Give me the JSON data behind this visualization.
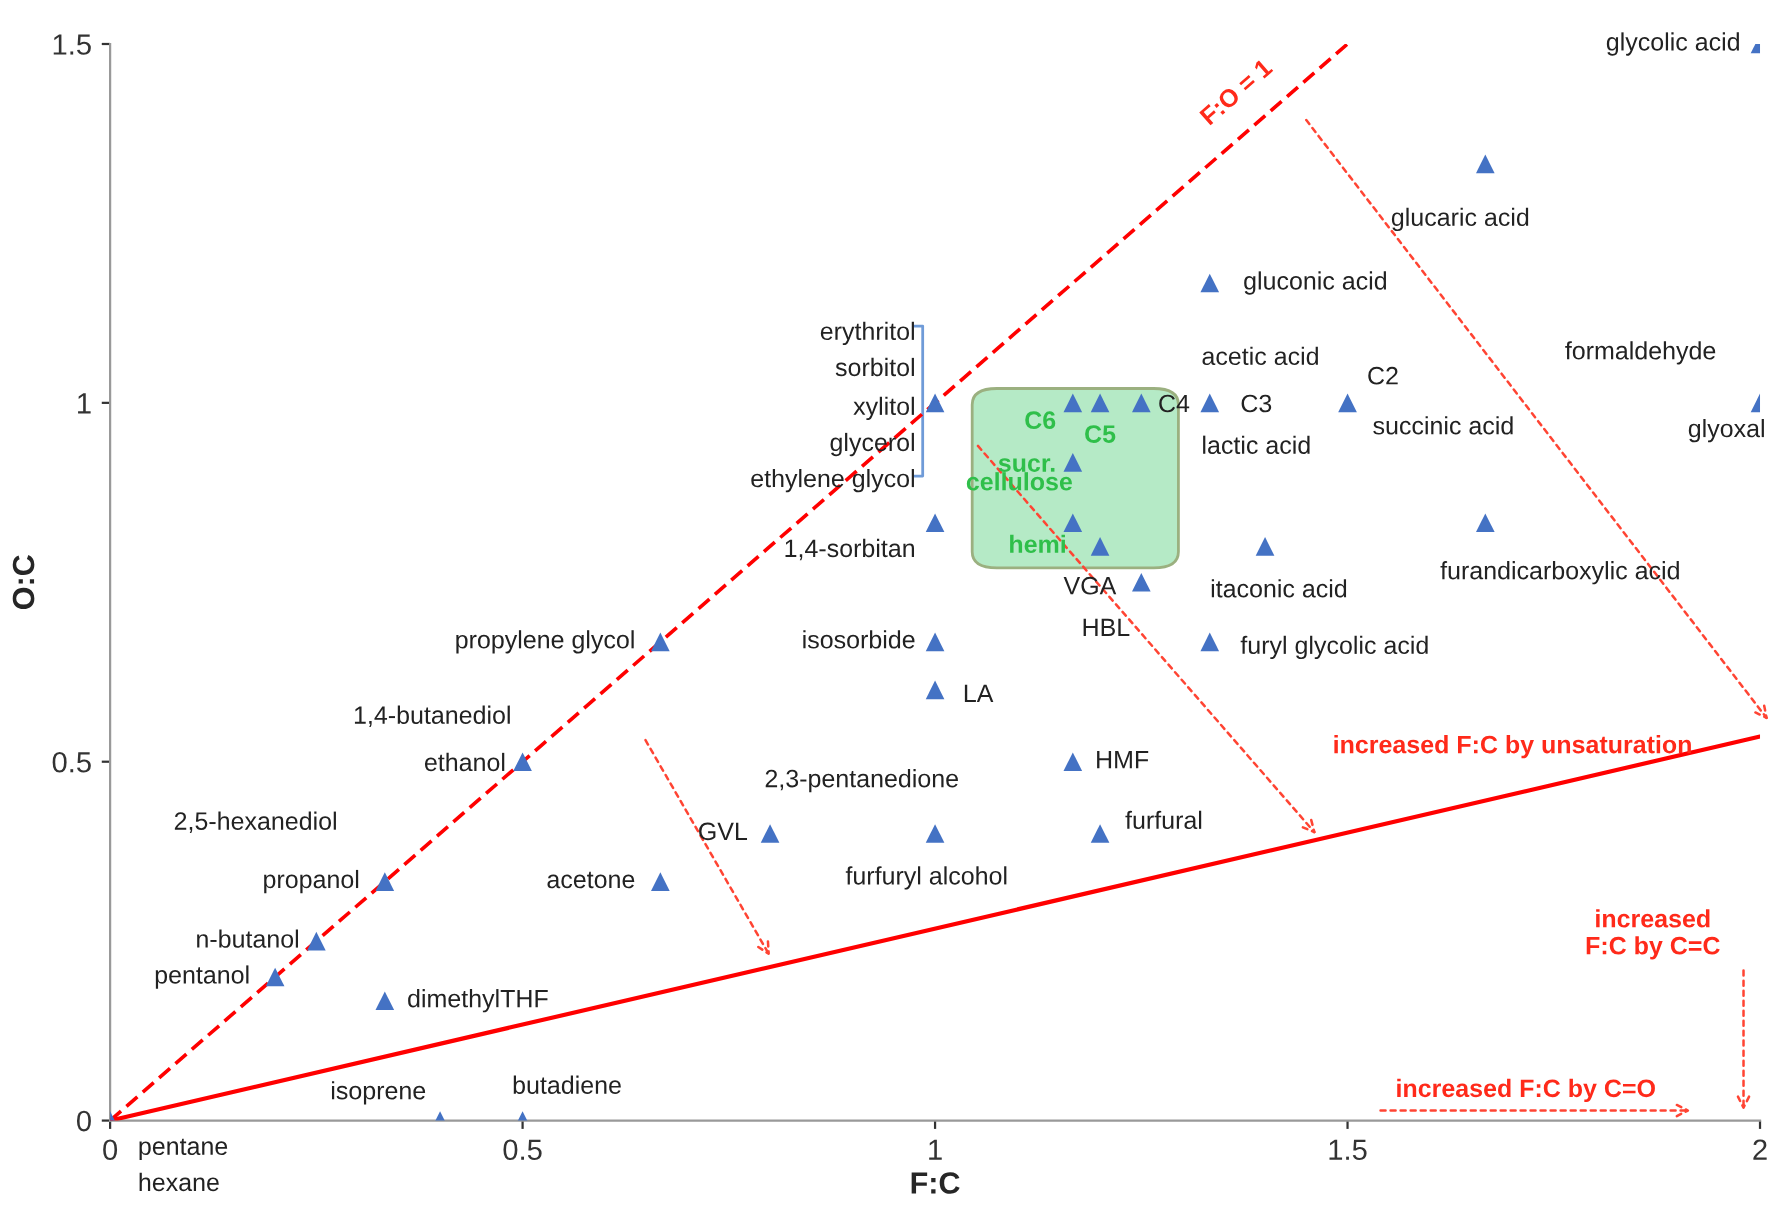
{
  "chart_data": {
    "type": "scatter",
    "xlabel": "F:C",
    "ylabel": "O:C",
    "xlim": [
      0,
      2
    ],
    "ylim": [
      0,
      1.5
    ],
    "xticks": [
      0,
      0.5,
      1,
      1.5,
      2
    ],
    "yticks": [
      0,
      0.5,
      1,
      1.5
    ],
    "grid": false,
    "series": [
      {
        "marker": "triangle",
        "color": "#4472c4",
        "x": [
          0,
          0.4,
          0.5,
          0.2,
          0.25,
          0.333,
          0.333,
          0.5,
          0.667,
          0.667,
          1,
          1,
          1,
          1,
          0.8,
          1,
          1.167,
          1.2,
          1.167,
          1.2,
          1.167,
          1.167,
          1.2,
          1.25,
          1.25,
          1.333,
          1.5,
          1.333,
          1.667,
          2,
          2,
          1.4,
          1.667,
          1.333
        ],
        "values": [
          0,
          0,
          0,
          0.2,
          0.25,
          0.167,
          0.333,
          0.5,
          0.333,
          0.667,
          1,
          0.833,
          0.667,
          0.6,
          0.4,
          0.4,
          0.5,
          0.4,
          1,
          1,
          0.917,
          0.833,
          0.8,
          1,
          0.75,
          1,
          1,
          1.167,
          1.333,
          1.5,
          1,
          0.8,
          0.833,
          0.667
        ]
      },
      {
        "type": "line",
        "marker": "none",
        "color": "#ff0000",
        "line_style": "dashed",
        "x": [
          0,
          1.5
        ],
        "values": [
          0,
          1.5
        ]
      },
      {
        "type": "line",
        "marker": "none",
        "color": "#ff0000",
        "line_style": "solid",
        "x": [
          0,
          2
        ],
        "values": [
          0,
          0.535
        ]
      }
    ],
    "annotations": [
      {
        "text": "pentane",
        "x": 0,
        "y": 0
      },
      {
        "text": "hexane",
        "x": 0,
        "y": 0
      },
      {
        "text": "isoprene",
        "x": 0.4,
        "y": 0
      },
      {
        "text": "butadiene",
        "x": 0.5,
        "y": 0
      },
      {
        "text": "pentanol",
        "x": 0.2,
        "y": 0.2
      },
      {
        "text": "n-butanol",
        "x": 0.25,
        "y": 0.25
      },
      {
        "text": "dimethylTHF",
        "x": 0.333,
        "y": 0.167
      },
      {
        "text": "propanol",
        "x": 0.333,
        "y": 0.333
      },
      {
        "text": "2,5-hexanediol",
        "x": 0.333,
        "y": 0.333
      },
      {
        "text": "ethanol",
        "x": 0.5,
        "y": 0.5
      },
      {
        "text": "1,4-butanediol",
        "x": 0.5,
        "y": 0.5
      },
      {
        "text": "acetone",
        "x": 0.667,
        "y": 0.333
      },
      {
        "text": "propylene glycol",
        "x": 0.667,
        "y": 0.667
      },
      {
        "text": "erythritol",
        "x": 1,
        "y": 1
      },
      {
        "text": "sorbitol",
        "x": 1,
        "y": 1
      },
      {
        "text": "xylitol",
        "x": 1,
        "y": 1
      },
      {
        "text": "glycerol",
        "x": 1,
        "y": 1
      },
      {
        "text": "ethylene glycol",
        "x": 1,
        "y": 1
      },
      {
        "text": "1,4-sorbitan",
        "x": 1,
        "y": 0.833
      },
      {
        "text": "isosorbide",
        "x": 1,
        "y": 0.667
      },
      {
        "text": "LA",
        "x": 1,
        "y": 0.6
      },
      {
        "text": "2,3-pentanedione",
        "x": 0.8,
        "y": 0.4
      },
      {
        "text": "GVL",
        "x": 0.8,
        "y": 0.4
      },
      {
        "text": "furfuryl alcohol",
        "x": 1,
        "y": 0.4
      },
      {
        "text": "HMF",
        "x": 1.167,
        "y": 0.5
      },
      {
        "text": "furfural",
        "x": 1.2,
        "y": 0.4
      },
      {
        "text": "C6",
        "x": 1.167,
        "y": 1
      },
      {
        "text": "C5",
        "x": 1.2,
        "y": 1
      },
      {
        "text": "sucr.",
        "x": 1.167,
        "y": 0.917
      },
      {
        "text": "cellulose",
        "x": 1.167,
        "y": 0.833
      },
      {
        "text": "hemi",
        "x": 1.2,
        "y": 0.8
      },
      {
        "text": "C4",
        "x": 1.25,
        "y": 1
      },
      {
        "text": "VGA",
        "x": 1.25,
        "y": 0.75
      },
      {
        "text": "HBL",
        "x": 1.25,
        "y": 0.75
      },
      {
        "text": "acetic acid",
        "x": 1.333,
        "y": 1
      },
      {
        "text": "C3",
        "x": 1.333,
        "y": 1
      },
      {
        "text": "lactic acid",
        "x": 1.333,
        "y": 1
      },
      {
        "text": "C2",
        "x": 1.5,
        "y": 1
      },
      {
        "text": "succinic acid",
        "x": 1.5,
        "y": 1
      },
      {
        "text": "gluconic acid",
        "x": 1.333,
        "y": 1.167
      },
      {
        "text": "glucaric acid",
        "x": 1.667,
        "y": 1.333
      },
      {
        "text": "glycolic acid",
        "x": 2,
        "y": 1.5
      },
      {
        "text": "formaldehyde",
        "x": 2,
        "y": 1
      },
      {
        "text": "glyoxal",
        "x": 2,
        "y": 1
      },
      {
        "text": "itaconic acid",
        "x": 1.4,
        "y": 0.8
      },
      {
        "text": "furandicarboxylic acid",
        "x": 1.667,
        "y": 0.833
      },
      {
        "text": "furyl glycolic acid",
        "x": 1.333,
        "y": 0.667
      },
      {
        "text": "F:O = 1",
        "x": 1.4,
        "y": 1.4
      },
      {
        "text": "increased F:C by unsaturation",
        "x": 1.7,
        "y": 0.459
      },
      "increased\nF:C by C=C",
      "increased F:C by C=O"
    ]
  }
}
